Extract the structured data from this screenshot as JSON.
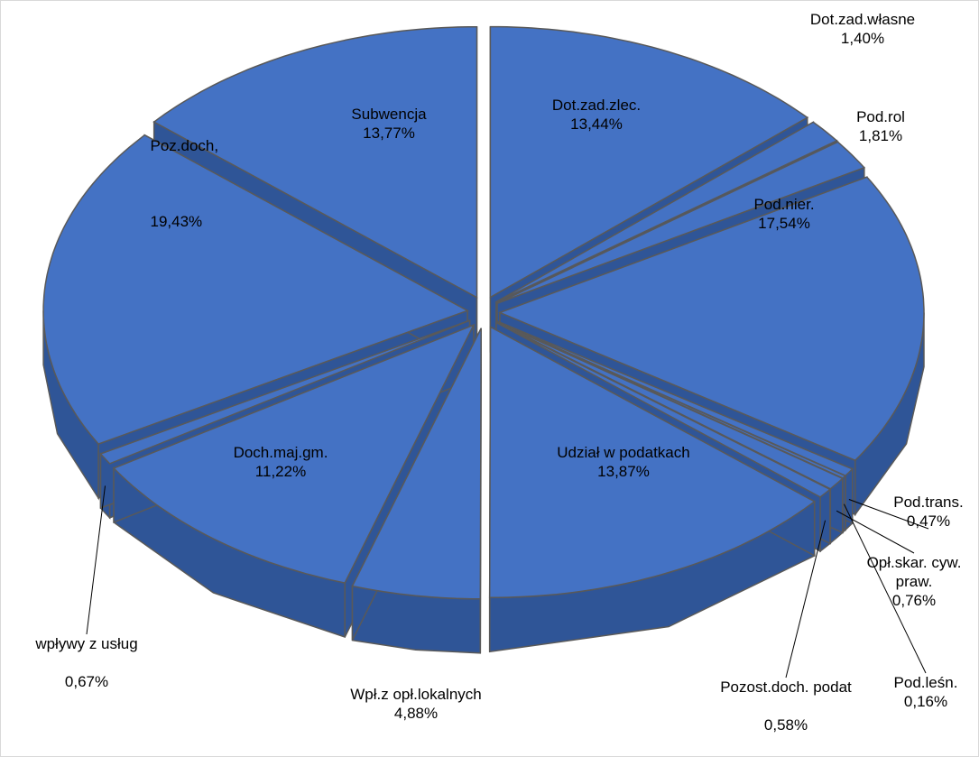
{
  "chart_data": {
    "type": "pie3d",
    "categories": [
      "Dot.zad.zlec.",
      "Dot.zad.własne",
      "Pod.rol",
      "Pod.nier.",
      "Pod.trans.",
      "Pod.leśn.",
      "Opł.skar. cyw. praw.",
      "Pozost.doch. podat",
      "Udział w podatkach",
      "Wpł.z opł.lokalnych",
      "Doch.maj.gm.",
      "wpływy z usług",
      "Poz.doch,",
      "Subwencja"
    ],
    "values": [
      13.44,
      1.4,
      1.81,
      17.54,
      0.47,
      0.16,
      0.76,
      0.58,
      13.87,
      4.88,
      11.22,
      0.67,
      19.43,
      13.77
    ],
    "value_labels": [
      "13,44%",
      "1,40%",
      "1,81%",
      "17,54%",
      "0,47%",
      "0,16%",
      "0,76%",
      "0,58%",
      "13,87%",
      "4,88%",
      "11,22%",
      "0,67%",
      "19,43%",
      "13,77%"
    ],
    "color": "#4472c4"
  }
}
